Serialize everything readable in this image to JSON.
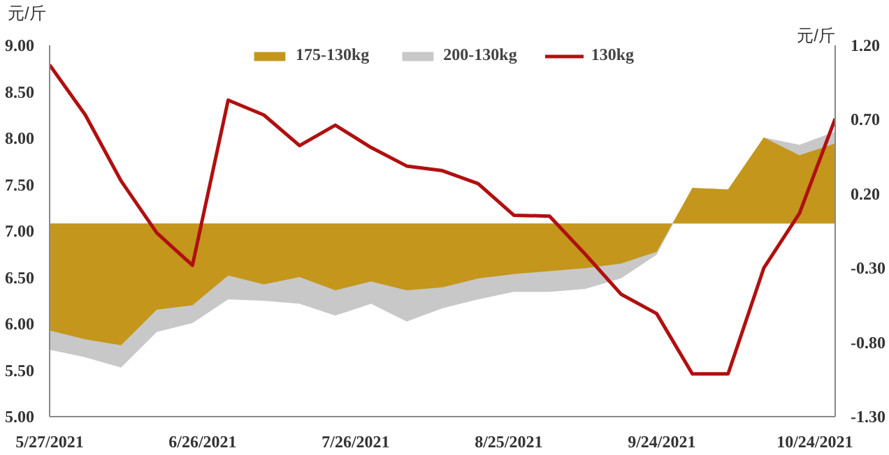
{
  "chart_data": {
    "type": "line",
    "ylabel": "元/斤",
    "y2label": "元/斤",
    "x": [
      "2021-05-27",
      "2021-06-03",
      "2021-06-10",
      "2021-06-17",
      "2021-06-24",
      "2021-07-01",
      "2021-07-08",
      "2021-07-15",
      "2021-07-22",
      "2021-07-29",
      "2021-08-05",
      "2021-08-12",
      "2021-08-19",
      "2021-08-26",
      "2021-09-02",
      "2021-09-09",
      "2021-09-16",
      "2021-09-23",
      "2021-09-30",
      "2021-10-07",
      "2021-10-14",
      "2021-10-21",
      "2021-10-28"
    ],
    "series": [
      {
        "name": "175-130kg",
        "type": "area",
        "axis": "y2",
        "color": "#c4961c",
        "values": [
          -0.72,
          -0.78,
          -0.82,
          -0.58,
          -0.55,
          -0.35,
          -0.41,
          -0.36,
          -0.45,
          -0.39,
          -0.45,
          -0.43,
          -0.37,
          -0.34,
          -0.32,
          -0.3,
          -0.27,
          -0.19,
          0.24,
          0.23,
          0.58,
          0.46,
          0.54
        ]
      },
      {
        "name": "200-130kg",
        "type": "area",
        "axis": "y2",
        "color": "#c8c8c8",
        "values": [
          -0.85,
          -0.9,
          -0.97,
          -0.73,
          -0.67,
          -0.51,
          -0.52,
          -0.54,
          -0.62,
          -0.54,
          -0.66,
          -0.57,
          -0.51,
          -0.46,
          -0.46,
          -0.44,
          -0.37,
          -0.21,
          0.24,
          0.23,
          0.58,
          0.53,
          0.62
        ]
      },
      {
        "name": "130kg",
        "color": "#b01010",
        "values": [
          8.79,
          8.25,
          7.54,
          6.98,
          6.63,
          8.41,
          8.25,
          7.92,
          8.14,
          7.9,
          7.7,
          7.65,
          7.51,
          7.17,
          7.16,
          6.75,
          6.32,
          6.11,
          5.46,
          5.46,
          6.6,
          7.19,
          8.21
        ]
      }
    ],
    "xlim": [
      "2021-05-27",
      "2021-10-28"
    ],
    "xticks": [
      {
        "value": "2021-05-27",
        "label": "5/27/2021"
      },
      {
        "value": "2021-06-26",
        "label": "6/26/2021"
      },
      {
        "value": "2021-07-26",
        "label": "7/26/2021"
      },
      {
        "value": "2021-08-25",
        "label": "8/25/2021"
      },
      {
        "value": "2021-09-24",
        "label": "9/24/2021"
      },
      {
        "value": "2021-10-24",
        "label": "10/24/2021"
      }
    ],
    "ylim": [
      5,
      9
    ],
    "yticks": [
      {
        "value": 5,
        "label": "5.00"
      },
      {
        "value": 5.5,
        "label": "5.50"
      },
      {
        "value": 6,
        "label": "6.00"
      },
      {
        "value": 6.5,
        "label": "6.50"
      },
      {
        "value": 7,
        "label": "7.00"
      },
      {
        "value": 7.5,
        "label": "7.50"
      },
      {
        "value": 8,
        "label": "8.00"
      },
      {
        "value": 8.5,
        "label": "8.50"
      },
      {
        "value": 9,
        "label": "9.00"
      }
    ],
    "y2lim": [
      -1.3,
      1.2
    ],
    "y2ticks": [
      {
        "value": -1.3,
        "label": "-1.30"
      },
      {
        "value": -0.8,
        "label": "-0.80"
      },
      {
        "value": -0.3,
        "label": "-0.30"
      },
      {
        "value": 0.2,
        "label": "0.20"
      },
      {
        "value": 0.7,
        "label": "0.70"
      },
      {
        "value": 1.2,
        "label": "1.20"
      }
    ],
    "grid": false,
    "legend": "top"
  }
}
